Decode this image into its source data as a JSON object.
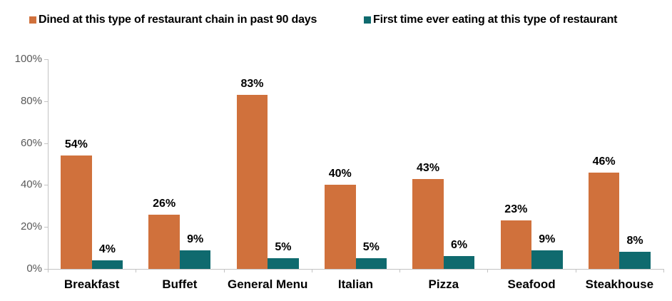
{
  "legend": {
    "items": [
      {
        "label": "Dined at this type of restaurant chain in past 90 days",
        "color": "#D0713C"
      },
      {
        "label": "First time ever eating at this type of restaurant",
        "color": "#0F6A6E"
      }
    ],
    "position": "top"
  },
  "chart_data": {
    "type": "bar",
    "categories": [
      "Breakfast",
      "Buffet",
      "General Menu",
      "Italian",
      "Pizza",
      "Seafood",
      "Steakhouse"
    ],
    "series": [
      {
        "name": "Dined at this type of restaurant chain in past 90 days",
        "color": "#D0713C",
        "values": [
          54,
          26,
          83,
          40,
          43,
          23,
          46
        ]
      },
      {
        "name": "First time ever eating at this type of restaurant",
        "color": "#0F6A6E",
        "values": [
          4,
          9,
          5,
          5,
          6,
          9,
          8
        ]
      }
    ],
    "value_suffix": "%",
    "data_labels": true,
    "title": "",
    "xlabel": "",
    "ylabel": "",
    "ylim": [
      0,
      100
    ],
    "ytick_interval": 20,
    "ytick_labels": [
      "0%",
      "20%",
      "40%",
      "60%",
      "80%",
      "100%"
    ],
    "grid": false,
    "legend_position": "top"
  },
  "style": {
    "axis_line_color": "#c3c3c3",
    "ytick_text_color": "#595959",
    "label_text_color": "#000000",
    "background": "#ffffff"
  }
}
